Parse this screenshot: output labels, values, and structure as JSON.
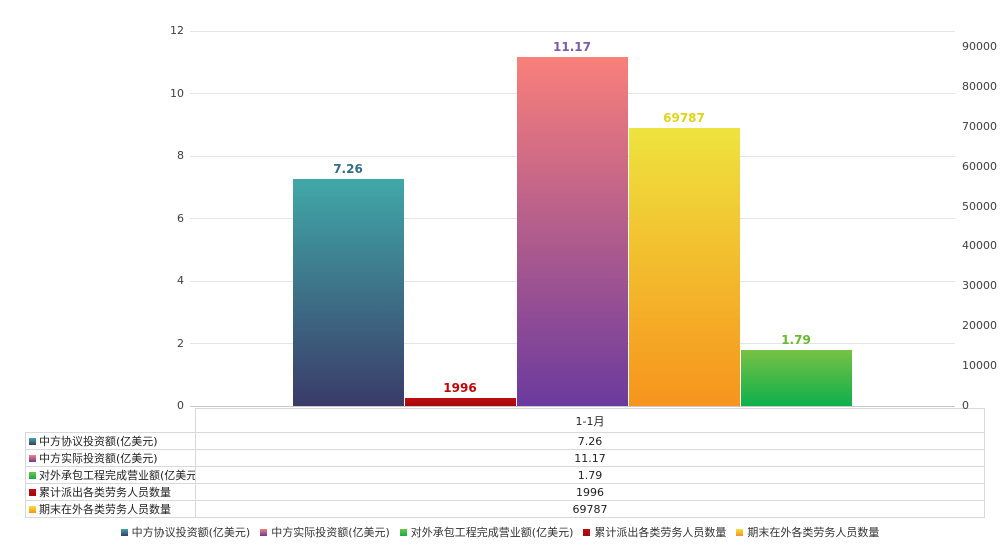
{
  "chart_data": {
    "type": "bar",
    "categories": [
      "1-1月"
    ],
    "series": [
      {
        "name": "中方协议投资额(亿美元)",
        "values": [
          7.26
        ],
        "axis": "left",
        "bar_position": 0,
        "color_top": "#40a8a8",
        "color_bottom": "#3a3b68",
        "label_color": "#336e88"
      },
      {
        "name": "中方实际投资额(亿美元)",
        "values": [
          11.17
        ],
        "axis": "left",
        "bar_position": 2,
        "color_top": "#f9807a",
        "color_bottom": "#6b3a9e",
        "label_color": "#7c5ca9"
      },
      {
        "name": "对外承包工程完成营业额(亿美元)",
        "values": [
          1.79
        ],
        "axis": "left",
        "bar_position": 4,
        "color_top": "#77c143",
        "color_bottom": "#0db04d",
        "label_color": "#67b82f"
      },
      {
        "name": "累计派出各类劳务人员数量",
        "values": [
          1996
        ],
        "axis": "right",
        "bar_position": 1,
        "color_top": "#c00d10",
        "color_bottom": "#a30a0d",
        "label_color": "#c00508"
      },
      {
        "name": "期末在外各类劳务人员数量",
        "values": [
          69787
        ],
        "axis": "right",
        "bar_position": 3,
        "color_top": "#eee33e",
        "color_bottom": "#f7941d",
        "label_color": "#ded41a"
      }
    ],
    "left_axis": {
      "min": 0,
      "max": 12,
      "ticks": [
        0,
        2,
        4,
        6,
        8,
        10,
        12
      ]
    },
    "right_axis": {
      "min": 0,
      "max": 94000,
      "ticks": [
        0,
        10000,
        20000,
        30000,
        40000,
        50000,
        60000,
        70000,
        80000,
        90000
      ]
    },
    "grid": true,
    "legend_position": "bottom"
  },
  "table": {
    "header_label": "1-1月",
    "rows": [
      {
        "label": "中方协议投资额(亿美元)",
        "value": "7.26"
      },
      {
        "label": "中方实际投资额(亿美元)",
        "value": "11.17"
      },
      {
        "label": "对外承包工程完成营业额(亿美元)",
        "value": "1.79"
      },
      {
        "label": "累计派出各类劳务人员数量",
        "value": "1996"
      },
      {
        "label": "期末在外各类劳务人员数量",
        "value": "69787"
      }
    ]
  },
  "legend": {
    "items": [
      "中方协议投资额(亿美元)",
      "中方实际投资额(亿美元)",
      "对外承包工程完成营业额(亿美元)",
      "累计派出各类劳务人员数量",
      "期末在外各类劳务人员数量"
    ]
  },
  "colors": {
    "gridline": "#e5e5e5",
    "axis_line": "#c9c9c9",
    "table_border": "#d9d9d9",
    "axis_text": "#404040"
  }
}
